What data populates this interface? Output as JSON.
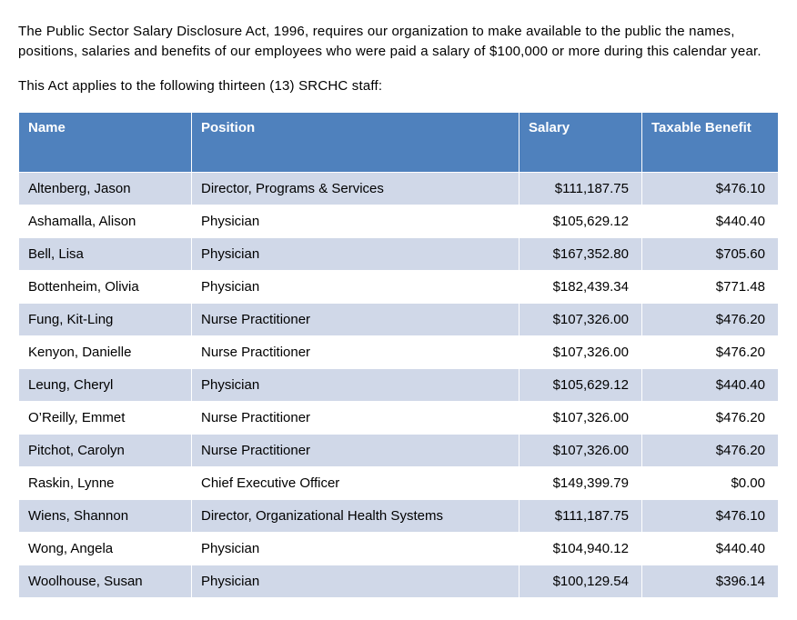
{
  "intro": {
    "p1": "The Public Sector Salary Disclosure Act, 1996, requires our organization to make available to the public the names, positions, salaries and benefits of our employees who were paid a salary of $100,000 or more during this calendar year.",
    "p2": "This Act applies to the following thirteen (13) SRCHC staff:"
  },
  "table": {
    "columns": [
      {
        "key": "name",
        "label": "Name",
        "class": "col-name",
        "numeric": false
      },
      {
        "key": "position",
        "label": "Position",
        "class": "col-pos",
        "numeric": false
      },
      {
        "key": "salary",
        "label": "Salary",
        "class": "col-salary",
        "numeric": true
      },
      {
        "key": "benefit",
        "label": "Taxable Benefit",
        "class": "col-benefit",
        "numeric": true
      }
    ],
    "rows": [
      {
        "name": "Altenberg, Jason",
        "position": "Director, Programs & Services",
        "salary": "$111,187.75",
        "benefit": "$476.10"
      },
      {
        "name": "Ashamalla, Alison",
        "position": "Physician",
        "salary": "$105,629.12",
        "benefit": "$440.40"
      },
      {
        "name": "Bell, Lisa",
        "position": "Physician",
        "salary": "$167,352.80",
        "benefit": "$705.60"
      },
      {
        "name": "Bottenheim, Olivia",
        "position": "Physician",
        "salary": "$182,439.34",
        "benefit": "$771.48"
      },
      {
        "name": "Fung, Kit-Ling",
        "position": "Nurse Practitioner",
        "salary": "$107,326.00",
        "benefit": "$476.20"
      },
      {
        "name": "Kenyon, Danielle",
        "position": "Nurse Practitioner",
        "salary": "$107,326.00",
        "benefit": "$476.20"
      },
      {
        "name": "Leung, Cheryl",
        "position": "Physician",
        "salary": "$105,629.12",
        "benefit": "$440.40"
      },
      {
        "name": "O’Reilly, Emmet",
        "position": "Nurse Practitioner",
        "salary": "$107,326.00",
        "benefit": "$476.20"
      },
      {
        "name": "Pitchot, Carolyn",
        "position": "Nurse Practitioner",
        "salary": "$107,326.00",
        "benefit": "$476.20"
      },
      {
        "name": "Raskin, Lynne",
        "position": "Chief Executive Officer",
        "salary": "$149,399.79",
        "benefit": "$0.00"
      },
      {
        "name": "Wiens, Shannon",
        "position": "Director, Organizational Health Systems",
        "salary": "$111,187.75",
        "benefit": "$476.10"
      },
      {
        "name": "Wong, Angela",
        "position": "Physician",
        "salary": "$104,940.12",
        "benefit": "$440.40"
      },
      {
        "name": "Woolhouse, Susan",
        "position": "Physician",
        "salary": "$100,129.54",
        "benefit": "$396.14"
      }
    ],
    "header_bg": "#4f81bd",
    "header_text": "#ffffff",
    "row_odd_bg": "#d0d8e8",
    "row_even_bg": "#ffffff",
    "border_color": "#ffffff",
    "cell_text": "#000000",
    "font_size_pt": 11
  }
}
